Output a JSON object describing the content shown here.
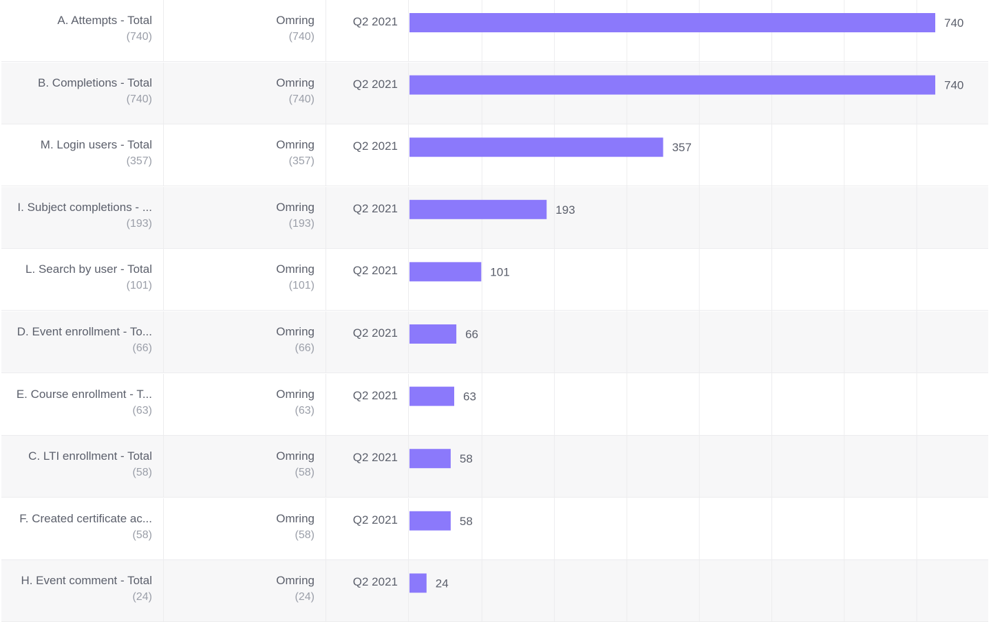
{
  "chart_data": {
    "type": "bar",
    "orientation": "horizontal",
    "xlim": [
      0,
      740
    ],
    "grid": true,
    "accent_color": "#8b79fb",
    "rows": [
      {
        "label": "A. Attempts - Total",
        "label_count": "(740)",
        "segment": "Omring",
        "segment_count": "(740)",
        "period": "Q2 2021",
        "value": 740,
        "value_label": "740"
      },
      {
        "label": "B. Completions - Total",
        "label_count": "(740)",
        "segment": "Omring",
        "segment_count": "(740)",
        "period": "Q2 2021",
        "value": 740,
        "value_label": "740"
      },
      {
        "label": "M. Login users - Total",
        "label_count": "(357)",
        "segment": "Omring",
        "segment_count": "(357)",
        "period": "Q2 2021",
        "value": 357,
        "value_label": "357"
      },
      {
        "label": "I. Subject completions - ...",
        "label_count": "(193)",
        "segment": "Omring",
        "segment_count": "(193)",
        "period": "Q2 2021",
        "value": 193,
        "value_label": "193"
      },
      {
        "label": "L. Search by user - Total",
        "label_count": "(101)",
        "segment": "Omring",
        "segment_count": "(101)",
        "period": "Q2 2021",
        "value": 101,
        "value_label": "101"
      },
      {
        "label": "D. Event enrollment - To...",
        "label_count": "(66)",
        "segment": "Omring",
        "segment_count": "(66)",
        "period": "Q2 2021",
        "value": 66,
        "value_label": "66"
      },
      {
        "label": "E. Course enrollment - T...",
        "label_count": "(63)",
        "segment": "Omring",
        "segment_count": "(63)",
        "period": "Q2 2021",
        "value": 63,
        "value_label": "63"
      },
      {
        "label": "C. LTI enrollment - Total",
        "label_count": "(58)",
        "segment": "Omring",
        "segment_count": "(58)",
        "period": "Q2 2021",
        "value": 58,
        "value_label": "58"
      },
      {
        "label": "F. Created certificate ac...",
        "label_count": "(58)",
        "segment": "Omring",
        "segment_count": "(58)",
        "period": "Q2 2021",
        "value": 58,
        "value_label": "58"
      },
      {
        "label": "H. Event comment - Total",
        "label_count": "(24)",
        "segment": "Omring",
        "segment_count": "(24)",
        "period": "Q2 2021",
        "value": 24,
        "value_label": "24"
      }
    ]
  }
}
